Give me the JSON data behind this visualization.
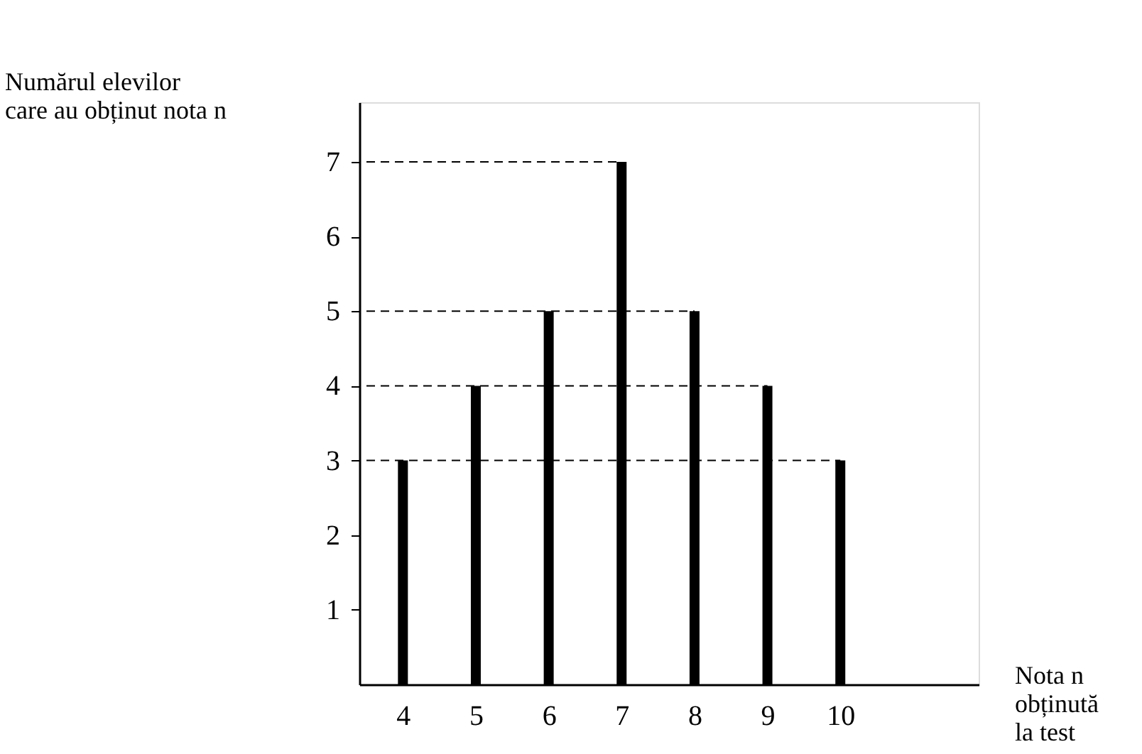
{
  "chart_data": {
    "type": "bar",
    "xlabel": "Nota n\nobținută\nla test",
    "ylabel": "Numărul elevilor\ncare au obținut nota n",
    "x": [
      4,
      5,
      6,
      7,
      8,
      9,
      10
    ],
    "values": [
      3,
      4,
      5,
      7,
      5,
      4,
      3
    ],
    "color": "#000000",
    "xlim": [
      3.5,
      11.8
    ],
    "xticks": [
      4,
      5,
      6,
      7,
      8,
      9,
      10
    ],
    "ylim": [
      0,
      7.8
    ],
    "yticks": [
      1,
      2,
      3,
      4,
      5,
      6,
      7
    ],
    "ref_lines": [
      {
        "axis": "y",
        "value": 3,
        "line_style": "dashed",
        "color": "#000000"
      },
      {
        "axis": "y",
        "value": 4,
        "line_style": "dashed",
        "color": "#000000"
      },
      {
        "axis": "y",
        "value": 5,
        "line_style": "dashed",
        "color": "#000000"
      },
      {
        "axis": "y",
        "value": 7,
        "line_style": "dashed",
        "color": "#000000"
      }
    ],
    "grid": false
  }
}
